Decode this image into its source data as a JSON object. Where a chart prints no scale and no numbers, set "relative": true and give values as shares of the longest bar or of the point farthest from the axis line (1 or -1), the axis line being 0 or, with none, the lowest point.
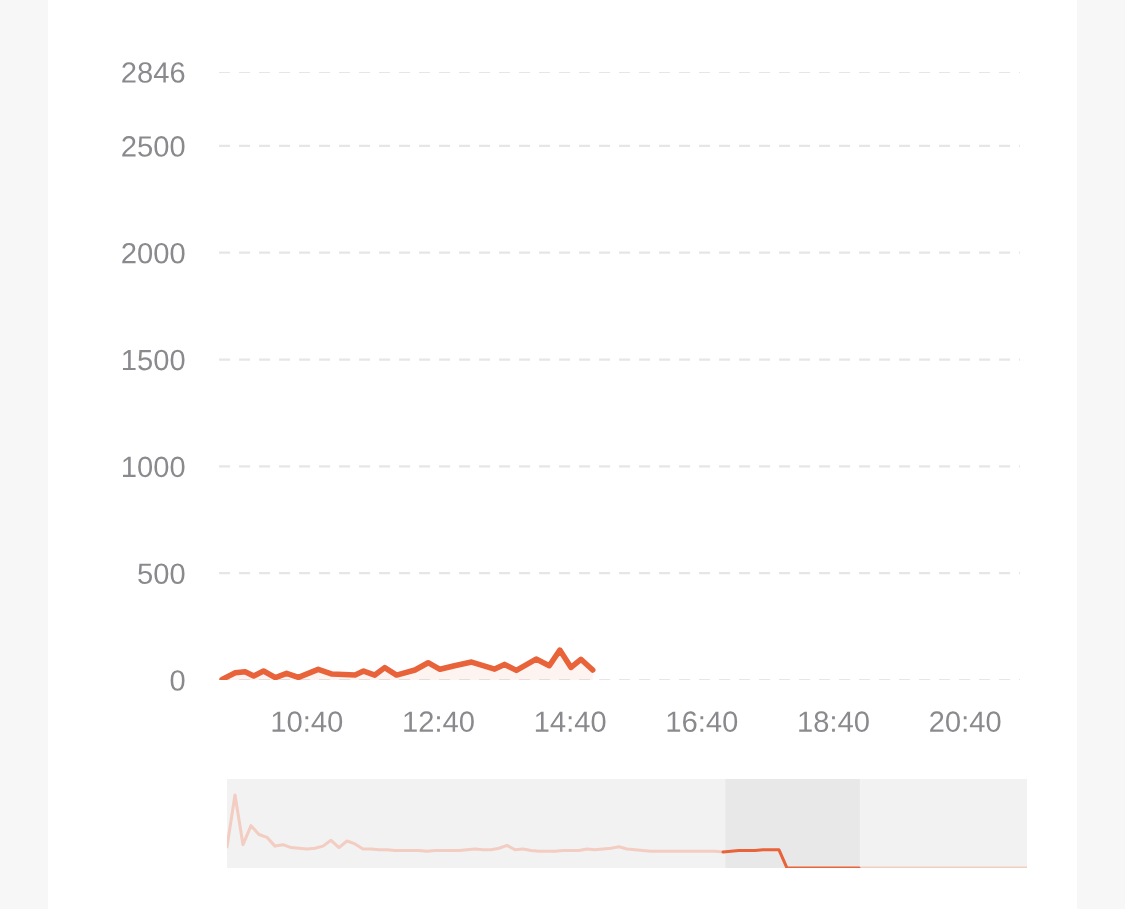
{
  "chart_data": [
    {
      "type": "area",
      "xlim": [
        9.333,
        21.5
      ],
      "ylim": [
        0,
        2846
      ],
      "yticks": [
        0,
        500,
        1000,
        1500,
        2000,
        2500,
        2846
      ],
      "xticks": [
        {
          "value": 10.667,
          "label": "10:40"
        },
        {
          "value": 12.667,
          "label": "12:40"
        },
        {
          "value": 14.667,
          "label": "14:40"
        },
        {
          "value": 16.667,
          "label": "16:40"
        },
        {
          "value": 18.667,
          "label": "18:40"
        },
        {
          "value": 20.667,
          "label": "20:40"
        }
      ],
      "grid": "y",
      "line_style": "solid",
      "marker": "none",
      "series": [
        {
          "color": "#e8623a",
          "x": [
            9.38,
            9.58,
            9.73,
            9.86,
            10.01,
            10.19,
            10.36,
            10.54,
            10.84,
            11.05,
            11.4,
            11.53,
            11.7,
            11.85,
            12.03,
            12.31,
            12.51,
            12.69,
            12.91,
            13.17,
            13.52,
            13.67,
            13.85,
            14.15,
            14.35,
            14.51,
            14.68,
            14.83,
            15.01
          ],
          "values": [
            3,
            34,
            39,
            19,
            42,
            11,
            31,
            12,
            50,
            28,
            23,
            42,
            23,
            58,
            23,
            47,
            81,
            50,
            67,
            84,
            51,
            73,
            45,
            98,
            67,
            140,
            59,
            97,
            47
          ]
        }
      ]
    },
    {
      "type": "line",
      "relative": true,
      "categories": [
        null,
        null,
        null,
        null,
        null,
        null,
        null,
        null,
        null,
        null,
        null,
        null,
        null,
        null,
        null,
        null,
        null,
        null,
        null,
        null,
        null,
        null,
        null,
        null,
        null,
        null,
        null,
        null,
        null,
        null,
        null,
        null,
        null,
        null,
        null,
        null,
        null,
        null,
        null,
        null,
        null,
        null,
        null,
        null,
        null,
        null,
        null,
        null,
        null,
        null,
        null,
        null,
        null,
        null,
        null,
        null,
        null,
        null,
        null,
        null,
        null,
        null,
        null,
        null,
        null,
        null,
        null,
        null,
        null,
        null,
        null,
        null,
        null,
        null,
        null,
        null,
        null,
        null,
        null,
        null,
        null,
        null,
        null,
        null,
        null,
        null,
        null,
        null,
        null,
        null,
        null,
        null,
        null,
        null,
        null,
        null,
        null,
        null,
        null,
        null,
        null
      ],
      "grid": false,
      "line_style": "solid",
      "marker": "none",
      "series": [
        {
          "color": "#f3cdc2",
          "values": [
            0.29,
            1,
            0.32,
            0.58,
            0.46,
            0.42,
            0.3,
            0.32,
            0.28,
            0.27,
            0.26,
            0.27,
            0.3,
            0.38,
            0.28,
            0.37,
            0.33,
            0.26,
            0.26,
            0.25,
            0.25,
            0.24,
            0.24,
            0.24,
            0.24,
            0.23,
            0.24,
            0.24,
            0.24,
            0.24,
            0.25,
            0.26,
            0.25,
            0.25,
            0.27,
            0.31,
            0.25,
            0.26,
            0.24,
            0.23,
            0.23,
            0.23,
            0.24,
            0.24,
            0.24,
            0.26,
            0.25,
            0.26,
            0.27,
            0.29,
            0.26,
            0.25,
            0.24,
            0.23,
            0.23,
            0.23,
            0.23,
            0.23,
            0.23,
            0.23,
            0.23,
            0.23,
            0.22,
            null,
            null,
            null,
            null,
            null,
            null,
            null,
            null,
            null,
            null,
            null,
            null,
            null,
            null,
            null,
            null,
            0,
            0,
            0,
            0,
            0,
            0,
            0,
            0,
            0,
            0,
            0,
            0,
            0,
            0,
            0,
            0,
            0,
            0,
            0,
            0,
            0,
            0
          ]
        },
        {
          "color": "#e8623a",
          "values": [
            null,
            null,
            null,
            null,
            null,
            null,
            null,
            null,
            null,
            null,
            null,
            null,
            null,
            null,
            null,
            null,
            null,
            null,
            null,
            null,
            null,
            null,
            null,
            null,
            null,
            null,
            null,
            null,
            null,
            null,
            null,
            null,
            null,
            null,
            null,
            null,
            null,
            null,
            null,
            null,
            null,
            null,
            null,
            null,
            null,
            null,
            null,
            null,
            null,
            null,
            null,
            null,
            null,
            null,
            null,
            null,
            null,
            null,
            null,
            null,
            null,
            null,
            0.22,
            0.23,
            0.24,
            0.24,
            0.24,
            0.25,
            0.25,
            0.25,
            0,
            0,
            0,
            0,
            0,
            0,
            0,
            0,
            0,
            0,
            null,
            null,
            null,
            null,
            null,
            null,
            null,
            null,
            null,
            null,
            null,
            null,
            null,
            null,
            null,
            null,
            null,
            null,
            null,
            null,
            null
          ]
        }
      ]
    }
  ]
}
